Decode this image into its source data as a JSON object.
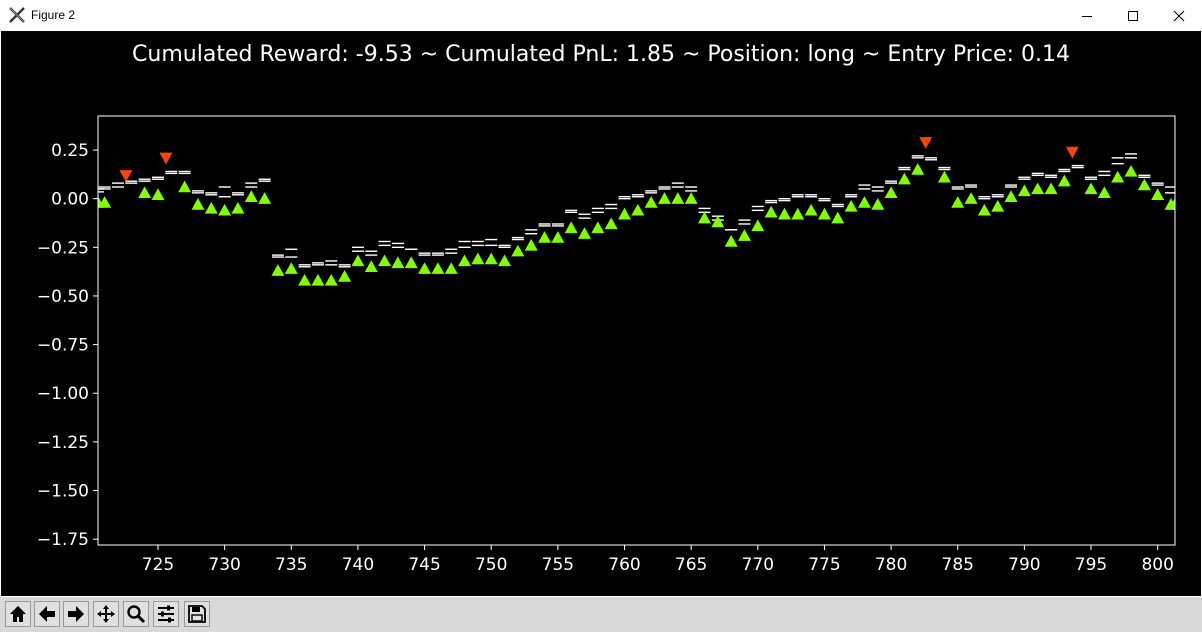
{
  "window": {
    "title": "Figure 2",
    "icons": [
      "matplotlib-x-icon",
      "minimize-icon",
      "maximize-icon",
      "close-icon"
    ]
  },
  "toolbar": {
    "buttons": [
      "home-icon",
      "back-icon",
      "forward-icon",
      "pan-icon",
      "zoom-icon",
      "configure-subplots-icon",
      "save-icon"
    ]
  },
  "colors": {
    "background": "#000000",
    "text": "#ffffff",
    "buy_marker": "#7fff00",
    "sell_marker": "#ff4500",
    "price_bars": "#ffffff"
  },
  "chart_data": {
    "type": "scatter",
    "title": "Cumulated Reward: -9.53 ~ Cumulated PnL: 1.85 ~ Position: long ~ Entry Price: 0.14",
    "xlabel": "",
    "ylabel": "",
    "xlim": [
      720.5,
      801.3
    ],
    "ylim": [
      -1.78,
      0.425
    ],
    "xticks": [
      725,
      730,
      735,
      740,
      745,
      750,
      755,
      760,
      765,
      770,
      775,
      780,
      785,
      790,
      795,
      800
    ],
    "xtick_labels": [
      "725",
      "730",
      "735",
      "740",
      "745",
      "750",
      "755",
      "760",
      "765",
      "770",
      "775",
      "780",
      "785",
      "790",
      "795",
      "800"
    ],
    "yticks": [
      0.25,
      0.0,
      -0.25,
      -0.5,
      -0.75,
      -1.0,
      -1.25,
      -1.5,
      -1.75
    ],
    "ytick_labels": [
      "0.25",
      "0.00",
      "−0.25",
      "−0.50",
      "−0.75",
      "−1.00",
      "−1.25",
      "−1.50",
      "−1.75"
    ],
    "grid": false,
    "price_levels": [
      [
        720.5,
        0.05,
        0.035
      ],
      [
        721,
        0.06,
        0.05
      ],
      [
        722,
        0.08,
        0.06
      ],
      [
        723,
        0.09,
        0.08
      ],
      [
        724,
        0.1,
        0.09
      ],
      [
        725,
        0.1,
        0.11
      ],
      [
        726,
        0.14,
        0.13
      ],
      [
        727,
        0.14,
        0.13
      ],
      [
        728,
        0.04,
        0.03
      ],
      [
        729,
        0.03,
        0.02
      ],
      [
        730,
        0.06,
        0.01
      ],
      [
        731,
        0.02,
        0.03
      ],
      [
        732,
        0.08,
        0.06
      ],
      [
        733,
        0.1,
        0.09
      ],
      [
        734,
        -0.29,
        -0.3
      ],
      [
        735,
        -0.26,
        -0.3
      ],
      [
        736,
        -0.34,
        -0.35
      ],
      [
        737,
        -0.34,
        -0.33
      ],
      [
        738,
        -0.32,
        -0.34
      ],
      [
        739,
        -0.34,
        -0.35
      ],
      [
        740,
        -0.25,
        -0.27
      ],
      [
        741,
        -0.27,
        -0.29
      ],
      [
        742,
        -0.22,
        -0.24
      ],
      [
        743,
        -0.23,
        -0.25
      ],
      [
        744,
        -0.26,
        -0.26
      ],
      [
        745,
        -0.28,
        -0.29
      ],
      [
        746,
        -0.28,
        -0.29
      ],
      [
        747,
        -0.26,
        -0.28
      ],
      [
        748,
        -0.22,
        -0.25
      ],
      [
        749,
        -0.22,
        -0.24
      ],
      [
        750,
        -0.21,
        -0.24
      ],
      [
        751,
        -0.24,
        -0.25
      ],
      [
        752,
        -0.2,
        -0.21
      ],
      [
        753,
        -0.16,
        -0.18
      ],
      [
        754,
        -0.13,
        -0.14
      ],
      [
        755,
        -0.13,
        -0.14
      ],
      [
        756,
        -0.06,
        -0.07
      ],
      [
        757,
        -0.08,
        -0.1
      ],
      [
        758,
        -0.05,
        -0.07
      ],
      [
        759,
        -0.03,
        -0.05
      ],
      [
        760,
        0.01,
        0.0
      ],
      [
        761,
        0.02,
        0.01
      ],
      [
        762,
        0.04,
        0.03
      ],
      [
        763,
        0.06,
        0.05
      ],
      [
        764,
        0.08,
        0.06
      ],
      [
        765,
        0.06,
        0.04
      ],
      [
        766,
        -0.05,
        -0.07
      ],
      [
        767,
        -0.09,
        -0.11
      ],
      [
        768,
        -0.16,
        -0.16
      ],
      [
        769,
        -0.11,
        -0.13
      ],
      [
        770,
        -0.04,
        -0.06
      ],
      [
        771,
        -0.01,
        -0.02
      ],
      [
        772,
        0.0,
        -0.01
      ],
      [
        773,
        0.02,
        0.01
      ],
      [
        774,
        0.02,
        0.01
      ],
      [
        775,
        0.0,
        -0.01
      ],
      [
        776,
        -0.03,
        -0.04
      ],
      [
        777,
        0.02,
        0.01
      ],
      [
        778,
        0.07,
        0.05
      ],
      [
        779,
        0.06,
        0.04
      ],
      [
        780,
        0.09,
        0.08
      ],
      [
        781,
        0.16,
        0.15
      ],
      [
        782,
        0.22,
        0.21
      ],
      [
        783,
        0.21,
        0.2
      ],
      [
        784,
        0.16,
        0.15
      ],
      [
        785,
        0.06,
        0.05
      ],
      [
        786,
        0.07,
        0.06
      ],
      [
        787,
        0.01,
        0.0
      ],
      [
        788,
        0.02,
        0.01
      ],
      [
        789,
        0.07,
        0.06
      ],
      [
        790,
        0.11,
        0.1
      ],
      [
        791,
        0.13,
        0.12
      ],
      [
        792,
        0.12,
        0.11
      ],
      [
        793,
        0.15,
        0.14
      ],
      [
        794,
        0.17,
        0.16
      ],
      [
        795,
        0.11,
        0.1
      ],
      [
        796,
        0.14,
        0.12
      ],
      [
        797,
        0.21,
        0.18
      ],
      [
        798,
        0.23,
        0.21
      ],
      [
        799,
        0.12,
        0.11
      ],
      [
        800,
        0.08,
        0.07
      ],
      [
        801,
        0.06,
        0.03
      ]
    ],
    "series": [
      {
        "marker": "triangle-up",
        "color": "#7fff00",
        "points": [
          [
            720.5,
            -0.02
          ],
          [
            721,
            -0.02
          ],
          [
            724,
            0.03
          ],
          [
            725,
            0.02
          ],
          [
            727,
            0.06
          ],
          [
            728,
            -0.03
          ],
          [
            729,
            -0.05
          ],
          [
            730,
            -0.06
          ],
          [
            731,
            -0.05
          ],
          [
            732,
            0.01
          ],
          [
            733,
            0.0
          ],
          [
            734,
            -0.37
          ],
          [
            735,
            -0.36
          ],
          [
            736,
            -0.42
          ],
          [
            737,
            -0.42
          ],
          [
            738,
            -0.42
          ],
          [
            739,
            -0.4
          ],
          [
            740,
            -0.32
          ],
          [
            741,
            -0.35
          ],
          [
            742,
            -0.32
          ],
          [
            743,
            -0.33
          ],
          [
            744,
            -0.33
          ],
          [
            745,
            -0.36
          ],
          [
            746,
            -0.36
          ],
          [
            747,
            -0.36
          ],
          [
            748,
            -0.32
          ],
          [
            749,
            -0.31
          ],
          [
            750,
            -0.31
          ],
          [
            751,
            -0.32
          ],
          [
            752,
            -0.27
          ],
          [
            753,
            -0.24
          ],
          [
            754,
            -0.2
          ],
          [
            755,
            -0.2
          ],
          [
            756,
            -0.15
          ],
          [
            757,
            -0.18
          ],
          [
            758,
            -0.15
          ],
          [
            759,
            -0.13
          ],
          [
            760,
            -0.08
          ],
          [
            761,
            -0.06
          ],
          [
            762,
            -0.02
          ],
          [
            763,
            0.0
          ],
          [
            764,
            0.0
          ],
          [
            765,
            0.0
          ],
          [
            766,
            -0.1
          ],
          [
            767,
            -0.12
          ],
          [
            768,
            -0.22
          ],
          [
            769,
            -0.19
          ],
          [
            770,
            -0.14
          ],
          [
            771,
            -0.07
          ],
          [
            772,
            -0.08
          ],
          [
            773,
            -0.08
          ],
          [
            774,
            -0.06
          ],
          [
            775,
            -0.08
          ],
          [
            776,
            -0.1
          ],
          [
            777,
            -0.04
          ],
          [
            778,
            -0.02
          ],
          [
            779,
            -0.03
          ],
          [
            780,
            0.03
          ],
          [
            781,
            0.1
          ],
          [
            782,
            0.15
          ],
          [
            784,
            0.11
          ],
          [
            785,
            -0.02
          ],
          [
            786,
            0.0
          ],
          [
            787,
            -0.06
          ],
          [
            788,
            -0.04
          ],
          [
            789,
            0.01
          ],
          [
            790,
            0.04
          ],
          [
            791,
            0.05
          ],
          [
            792,
            0.05
          ],
          [
            793,
            0.09
          ],
          [
            795,
            0.05
          ],
          [
            796,
            0.03
          ],
          [
            797,
            0.11
          ],
          [
            798,
            0.14
          ],
          [
            799,
            0.07
          ],
          [
            800,
            0.02
          ],
          [
            801,
            -0.03
          ],
          [
            801.3,
            -0.03
          ]
        ]
      },
      {
        "marker": "triangle-down",
        "color": "#ff4500",
        "points": [
          [
            722.6,
            0.12
          ],
          [
            725.6,
            0.21
          ],
          [
            782.6,
            0.29
          ],
          [
            793.6,
            0.24
          ]
        ]
      }
    ]
  }
}
